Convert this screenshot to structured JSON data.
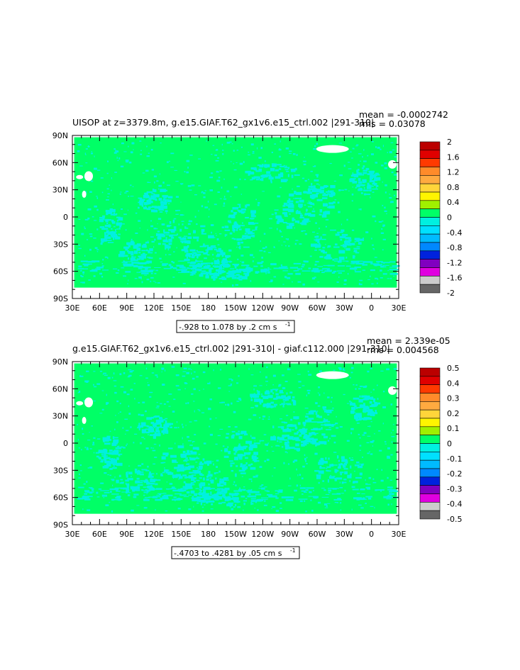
{
  "chart_data": [
    {
      "type": "heatmap",
      "title": "UISOP at z=3379.8m, g.e15.GIAF.T62_gx1v6.e15_ctrl.002 |291-310|",
      "stats": {
        "mean": "mean = -0.0002742",
        "rms": "rms = 0.03078"
      },
      "x_ticks": [
        "30E",
        "60E",
        "90E",
        "120E",
        "150E",
        "180",
        "150W",
        "120W",
        "90W",
        "60W",
        "30W",
        "0",
        "30E"
      ],
      "y_ticks": [
        "90N",
        "60N",
        "30N",
        "0",
        "30S",
        "60S",
        "90S"
      ],
      "xlim": [
        30,
        390
      ],
      "ylim": [
        -90,
        90
      ],
      "contour_info": "-.928 to 1.078 by .2 cm s",
      "contour_unit_exp": "-1",
      "colorbar": {
        "labels": [
          "2",
          "1.6",
          "1.2",
          "0.8",
          "0.4",
          "0",
          "-0.4",
          "-0.8",
          "-1.2",
          "-1.6",
          "-2"
        ],
        "colors": [
          "#bb0000",
          "#e00000",
          "#ff3a00",
          "#ff8b2a",
          "#ffaa40",
          "#ffd53a",
          "#fff500",
          "#a0f000",
          "#00ff66",
          "#00f0e0",
          "#00e0ff",
          "#00bbff",
          "#0088ff",
          "#0022dd",
          "#8000c0",
          "#e000e0",
          "#cccccc",
          "#666666"
        ]
      },
      "dominant_value": 0,
      "grid": false
    },
    {
      "type": "heatmap",
      "title": "g.e15.GIAF.T62_gx1v6.e15_ctrl.002 |291-310| - giaf.c112.000 |291-310|",
      "stats": {
        "mean": "mean = 2.339e-05",
        "rms": "rms = 0.004568"
      },
      "x_ticks": [
        "30E",
        "60E",
        "90E",
        "120E",
        "150E",
        "180",
        "150W",
        "120W",
        "90W",
        "60W",
        "30W",
        "0",
        "30E"
      ],
      "y_ticks": [
        "90N",
        "60N",
        "30N",
        "0",
        "30S",
        "60S",
        "90S"
      ],
      "xlim": [
        30,
        390
      ],
      "ylim": [
        -90,
        90
      ],
      "contour_info": "-.4703 to .4281 by .05 cm s",
      "contour_unit_exp": "-1",
      "colorbar": {
        "labels": [
          "0.5",
          "0.4",
          "0.3",
          "0.2",
          "0.1",
          "0",
          "-0.1",
          "-0.2",
          "-0.3",
          "-0.4",
          "-0.5"
        ],
        "colors": [
          "#bb0000",
          "#e00000",
          "#ff3a00",
          "#ff8b2a",
          "#ffaa40",
          "#ffd53a",
          "#fff500",
          "#a0f000",
          "#00ff66",
          "#00f0e0",
          "#00e0ff",
          "#00bbff",
          "#0088ff",
          "#0022dd",
          "#8000c0",
          "#e000e0",
          "#cccccc",
          "#666666"
        ]
      },
      "dominant_value": 0,
      "grid": false
    }
  ]
}
